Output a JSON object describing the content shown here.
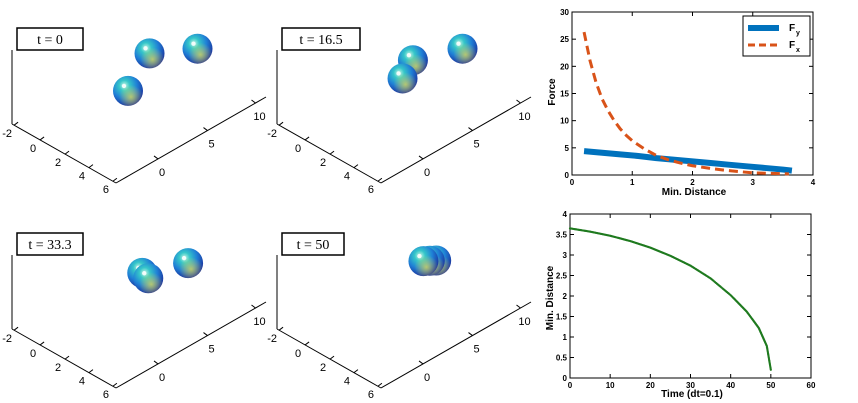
{
  "snapshots": [
    {
      "label": "t = 0",
      "xticks": [
        "-2",
        "0",
        "2",
        "4",
        "6"
      ],
      "yticks": [
        "0",
        "5",
        "10"
      ],
      "spheres": [
        {
          "x": 6.5,
          "y": 5.5,
          "z": 1.0
        },
        {
          "x": 2.6,
          "y": 5.7,
          "z": 0.0
        },
        {
          "x": 4.3,
          "y": 2.5,
          "z": 0.0
        }
      ]
    },
    {
      "label": "t = 16.5",
      "xticks": [
        "-2",
        "0",
        "2",
        "4",
        "6"
      ],
      "yticks": [
        "0",
        "5",
        "10"
      ],
      "spheres": [
        {
          "x": 6.5,
          "y": 5.5,
          "z": 1.0
        },
        {
          "x": 3.0,
          "y": 5.2,
          "z": 0.0
        },
        {
          "x": 4.3,
          "y": 3.2,
          "z": 0.2
        }
      ]
    },
    {
      "label": "t = 33.3",
      "xticks": [
        "-2",
        "0",
        "2",
        "4",
        "6"
      ],
      "yticks": [
        "0",
        "5",
        "10"
      ],
      "spheres": [
        {
          "x": 6.3,
          "y": 5.0,
          "z": 0.8
        },
        {
          "x": 3.3,
          "y": 4.5,
          "z": 0.0
        },
        {
          "x": 4.6,
          "y": 3.7,
          "z": 0.3
        }
      ]
    },
    {
      "label": "t = 50",
      "xticks": [
        "-2",
        "0",
        "2",
        "4",
        "6"
      ],
      "yticks": [
        "0",
        "5",
        "10"
      ],
      "spheres": [
        {
          "x": 5.0,
          "y": 5.0,
          "z": 0.6
        },
        {
          "x": 4.3,
          "y": 5.2,
          "z": 0.4
        },
        {
          "x": 3.6,
          "y": 5.4,
          "z": 0.2
        }
      ]
    }
  ],
  "chart_data": [
    {
      "type": "line",
      "xlabel": "Min. Distance",
      "ylabel": "Force",
      "xlim": [
        0,
        4
      ],
      "ylim": [
        0,
        30
      ],
      "xticks": [
        "0",
        "1",
        "2",
        "3",
        "4"
      ],
      "yticks": [
        "0",
        "5",
        "10",
        "15",
        "20",
        "25",
        "30"
      ],
      "legend_position": "top-right",
      "legend": [
        {
          "label": "F",
          "sub": "y",
          "style": "solid",
          "color": "#0072bd"
        },
        {
          "label": "F",
          "sub": "x",
          "style": "dashed",
          "color": "#d95319"
        }
      ],
      "series": [
        {
          "key": "Fy",
          "style": "solid",
          "color": "#0072bd",
          "x": [
            0.2,
            0.5,
            0.8,
            1.1,
            1.4,
            1.7,
            2.0,
            2.3,
            2.6,
            2.9,
            3.2,
            3.5,
            3.65
          ],
          "y": [
            4.4,
            4.1,
            3.8,
            3.5,
            3.1,
            2.8,
            2.5,
            2.2,
            1.9,
            1.6,
            1.3,
            1.0,
            0.8
          ]
        },
        {
          "key": "Fx",
          "style": "dashed",
          "color": "#d95319",
          "x": [
            0.2,
            0.3,
            0.4,
            0.5,
            0.6,
            0.7,
            0.8,
            0.9,
            1.0,
            1.2,
            1.4,
            1.6,
            1.8,
            2.0,
            2.3,
            2.6,
            3.0,
            3.3,
            3.6
          ],
          "y": [
            26.3,
            21.0,
            17.0,
            14.0,
            11.8,
            10.0,
            8.5,
            7.3,
            6.3,
            4.8,
            3.6,
            2.8,
            2.2,
            1.7,
            1.2,
            0.8,
            0.4,
            0.3,
            0.2
          ]
        }
      ]
    },
    {
      "type": "scatter",
      "xlabel": "Time (dt=0.1)",
      "ylabel": "Min. Distance",
      "xlim": [
        0,
        60
      ],
      "ylim": [
        0,
        4
      ],
      "xticks": [
        "0",
        "10",
        "20",
        "30",
        "40",
        "50",
        "60"
      ],
      "yticks": [
        "0",
        "0.5",
        "1",
        "1.5",
        "2",
        "2.5",
        "3",
        "3.5",
        "4"
      ],
      "series": [
        {
          "key": "dist",
          "color": "#1f7a1f",
          "x": [
            0,
            5,
            10,
            15,
            20,
            25,
            30,
            35,
            40,
            44,
            47,
            49,
            50
          ],
          "y": [
            3.65,
            3.57,
            3.47,
            3.34,
            3.18,
            2.98,
            2.74,
            2.43,
            2.02,
            1.62,
            1.22,
            0.78,
            0.2
          ]
        }
      ]
    }
  ]
}
